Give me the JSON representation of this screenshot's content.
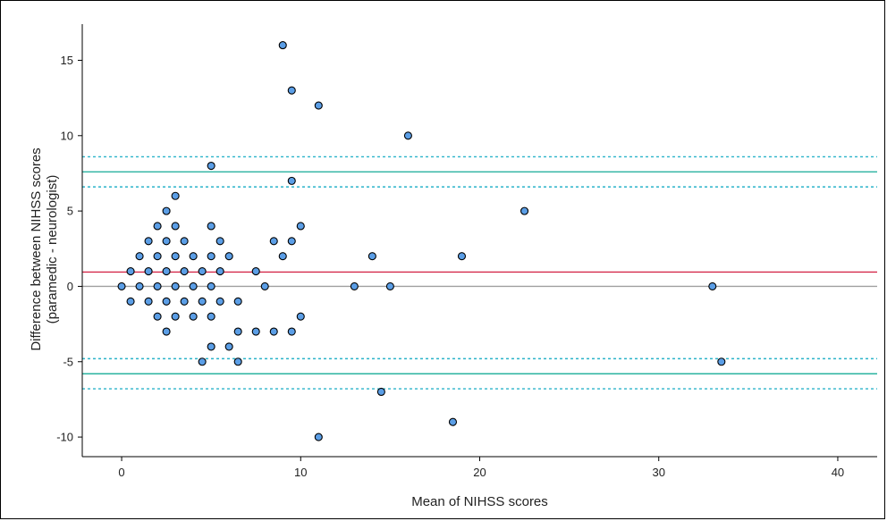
{
  "chart_data": {
    "type": "scatter",
    "xlabel": "Mean of NIHSS scores",
    "ylabel_line1": "Difference between NIHSS scores",
    "ylabel_line2": "(paramedic - neurologist)",
    "xlim": [
      -2.2,
      42.2
    ],
    "ylim": [
      -11.3,
      17.4
    ],
    "xticks": [
      0,
      10,
      20,
      30,
      40
    ],
    "yticks": [
      -10,
      -5,
      0,
      5,
      10,
      15
    ],
    "grid": false,
    "legend": "none",
    "reference_lines": [
      {
        "name": "zero",
        "y": 0,
        "style": "solid",
        "color": "#a0a0a0"
      },
      {
        "name": "mean-difference",
        "y": 0.95,
        "style": "solid",
        "color": "#d4294a"
      },
      {
        "name": "upper-limit",
        "y": 7.6,
        "style": "solid",
        "color": "#2ab3a0"
      },
      {
        "name": "upper-limit-ci-high",
        "y": 8.6,
        "style": "dashed",
        "color": "#2ab3c9"
      },
      {
        "name": "upper-limit-ci-low",
        "y": 6.6,
        "style": "dashed",
        "color": "#2ab3c9"
      },
      {
        "name": "lower-limit",
        "y": -5.8,
        "style": "solid",
        "color": "#2ab3a0"
      },
      {
        "name": "lower-limit-ci-high",
        "y": -4.8,
        "style": "dashed",
        "color": "#2ab3c9"
      },
      {
        "name": "lower-limit-ci-low",
        "y": -6.8,
        "style": "dashed",
        "color": "#2ab3c9"
      }
    ],
    "marker_color": "#5b9ee6",
    "points": [
      {
        "x": 0,
        "y": 0
      },
      {
        "x": 0.5,
        "y": 1
      },
      {
        "x": 0.5,
        "y": -1
      },
      {
        "x": 1,
        "y": 2
      },
      {
        "x": 1,
        "y": 0
      },
      {
        "x": 1.5,
        "y": 3
      },
      {
        "x": 1.5,
        "y": 1
      },
      {
        "x": 1.5,
        "y": -1
      },
      {
        "x": 2,
        "y": 4
      },
      {
        "x": 2,
        "y": 2
      },
      {
        "x": 2,
        "y": 0
      },
      {
        "x": 2,
        "y": -2
      },
      {
        "x": 2.5,
        "y": 5
      },
      {
        "x": 2.5,
        "y": 3
      },
      {
        "x": 2.5,
        "y": 1
      },
      {
        "x": 2.5,
        "y": -1
      },
      {
        "x": 2.5,
        "y": -3
      },
      {
        "x": 3,
        "y": 6
      },
      {
        "x": 3,
        "y": 4
      },
      {
        "x": 3,
        "y": 2
      },
      {
        "x": 3,
        "y": 0
      },
      {
        "x": 3,
        "y": -2
      },
      {
        "x": 3.5,
        "y": 3
      },
      {
        "x": 3.5,
        "y": 1
      },
      {
        "x": 3.5,
        "y": -1
      },
      {
        "x": 4,
        "y": 2
      },
      {
        "x": 4,
        "y": 0
      },
      {
        "x": 4,
        "y": -2
      },
      {
        "x": 4.5,
        "y": 1
      },
      {
        "x": 4.5,
        "y": -1
      },
      {
        "x": 4.5,
        "y": -5
      },
      {
        "x": 5,
        "y": 8
      },
      {
        "x": 5,
        "y": 4
      },
      {
        "x": 5,
        "y": 2
      },
      {
        "x": 5,
        "y": 0
      },
      {
        "x": 5,
        "y": -2
      },
      {
        "x": 5,
        "y": -4
      },
      {
        "x": 5.5,
        "y": 3
      },
      {
        "x": 5.5,
        "y": 1
      },
      {
        "x": 5.5,
        "y": -1
      },
      {
        "x": 6,
        "y": 2
      },
      {
        "x": 6,
        "y": -4
      },
      {
        "x": 6.5,
        "y": -1
      },
      {
        "x": 6.5,
        "y": -3
      },
      {
        "x": 6.5,
        "y": -5
      },
      {
        "x": 7.5,
        "y": 1
      },
      {
        "x": 7.5,
        "y": -3
      },
      {
        "x": 8,
        "y": 0
      },
      {
        "x": 8.5,
        "y": 3
      },
      {
        "x": 8.5,
        "y": -3
      },
      {
        "x": 9,
        "y": 16
      },
      {
        "x": 9,
        "y": 2
      },
      {
        "x": 9.5,
        "y": 13
      },
      {
        "x": 9.5,
        "y": 7
      },
      {
        "x": 9.5,
        "y": 3
      },
      {
        "x": 9.5,
        "y": -3
      },
      {
        "x": 10,
        "y": 4
      },
      {
        "x": 10,
        "y": -2
      },
      {
        "x": 11,
        "y": 12
      },
      {
        "x": 11,
        "y": -10
      },
      {
        "x": 13,
        "y": 0
      },
      {
        "x": 14,
        "y": 2
      },
      {
        "x": 14.5,
        "y": -7
      },
      {
        "x": 15,
        "y": 0
      },
      {
        "x": 16,
        "y": 10
      },
      {
        "x": 18.5,
        "y": -9
      },
      {
        "x": 19,
        "y": 2
      },
      {
        "x": 22.5,
        "y": 5
      },
      {
        "x": 33,
        "y": 0
      },
      {
        "x": 33.5,
        "y": -5
      }
    ]
  }
}
